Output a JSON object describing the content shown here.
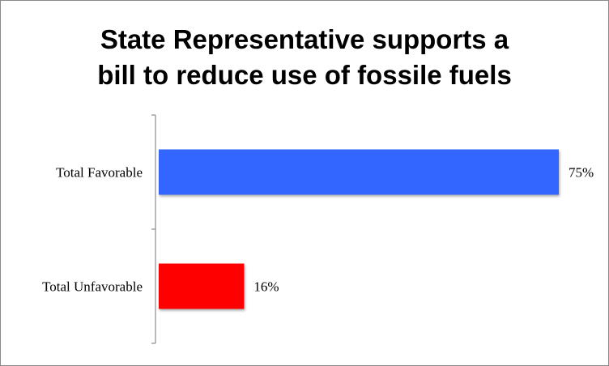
{
  "chart_data": {
    "type": "bar",
    "orientation": "horizontal",
    "title_lines": [
      "State Representative supports a",
      "bill to reduce use of fossile fuels"
    ],
    "categories": [
      "Total Favorable",
      "Total Unfavorable"
    ],
    "values": [
      75,
      16
    ],
    "value_labels": [
      "75%",
      "16%"
    ],
    "colors": [
      "#3366ff",
      "#ff0000"
    ],
    "xlim": [
      0,
      75
    ],
    "grid": false,
    "legend": "none"
  }
}
